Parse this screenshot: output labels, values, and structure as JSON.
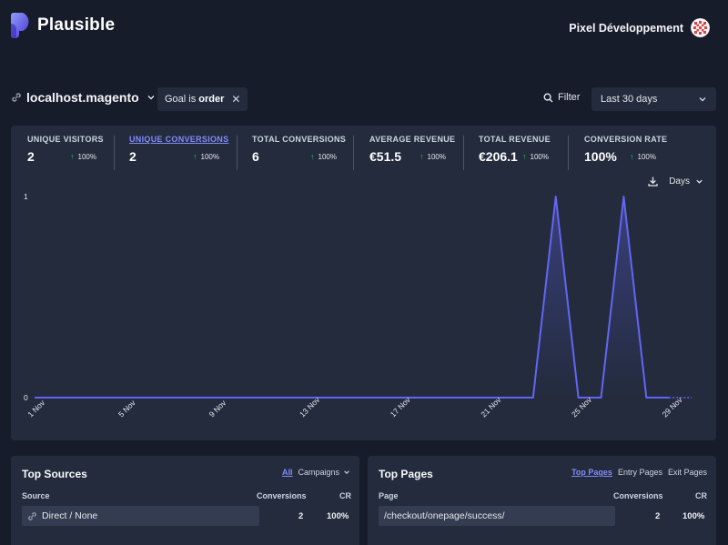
{
  "header": {
    "brand": "Plausible",
    "user_name": "Pixel Développement"
  },
  "filters": {
    "site": "localhost.magento",
    "goal_label": "Goal is",
    "goal_value": "order",
    "filter_label": "Filter",
    "period": "Last 30 days"
  },
  "stats": [
    {
      "label": "UNIQUE VISITORS",
      "value": "2",
      "change": "100%"
    },
    {
      "label": "UNIQUE CONVERSIONS",
      "value": "2",
      "change": "100%"
    },
    {
      "label": "TOTAL CONVERSIONS",
      "value": "6",
      "change": "100%"
    },
    {
      "label": "AVERAGE REVENUE",
      "value": "€51.5",
      "change": "100%"
    },
    {
      "label": "TOTAL REVENUE",
      "value": "€206.1",
      "change": "100%"
    },
    {
      "label": "CONVERSION RATE",
      "value": "100%",
      "change": "100%"
    }
  ],
  "chart": {
    "interval": "Days"
  },
  "chart_data": {
    "type": "line",
    "x": [
      "1 Nov",
      "2 Nov",
      "3 Nov",
      "4 Nov",
      "5 Nov",
      "6 Nov",
      "7 Nov",
      "8 Nov",
      "9 Nov",
      "10 Nov",
      "11 Nov",
      "12 Nov",
      "13 Nov",
      "14 Nov",
      "15 Nov",
      "16 Nov",
      "17 Nov",
      "18 Nov",
      "19 Nov",
      "20 Nov",
      "21 Nov",
      "22 Nov",
      "23 Nov",
      "24 Nov",
      "25 Nov",
      "26 Nov",
      "27 Nov",
      "28 Nov",
      "29 Nov",
      "30 Nov"
    ],
    "x_ticks": [
      "1 Nov",
      "5 Nov",
      "9 Nov",
      "13 Nov",
      "17 Nov",
      "21 Nov",
      "25 Nov",
      "29 Nov"
    ],
    "series": [
      {
        "values": [
          0,
          0,
          0,
          0,
          0,
          0,
          0,
          0,
          0,
          0,
          0,
          0,
          0,
          0,
          0,
          0,
          0,
          0,
          0,
          0,
          0,
          0,
          0,
          1,
          0,
          0,
          1,
          0,
          0,
          0
        ]
      }
    ],
    "y_ticks": [
      "0",
      "1"
    ],
    "ylim": [
      0,
      1
    ],
    "grid": false,
    "line_color": "#6366f1",
    "last_point_dashed": true
  },
  "top_sources": {
    "title": "Top Sources",
    "tabs": [
      "All",
      "Campaigns"
    ],
    "active_tab": "All",
    "col_source": "Source",
    "col_conversions": "Conversions",
    "col_cr": "CR",
    "rows": [
      {
        "label": "Direct / None",
        "conversions": "2",
        "cr": "100%"
      }
    ]
  },
  "top_pages": {
    "title": "Top Pages",
    "tabs": [
      "Top Pages",
      "Entry Pages",
      "Exit Pages"
    ],
    "active_tab": "Top Pages",
    "col_page": "Page",
    "col_conversions": "Conversions",
    "col_cr": "CR",
    "rows": [
      {
        "label": "/checkout/onepage/success/",
        "conversions": "2",
        "cr": "100%"
      }
    ]
  }
}
